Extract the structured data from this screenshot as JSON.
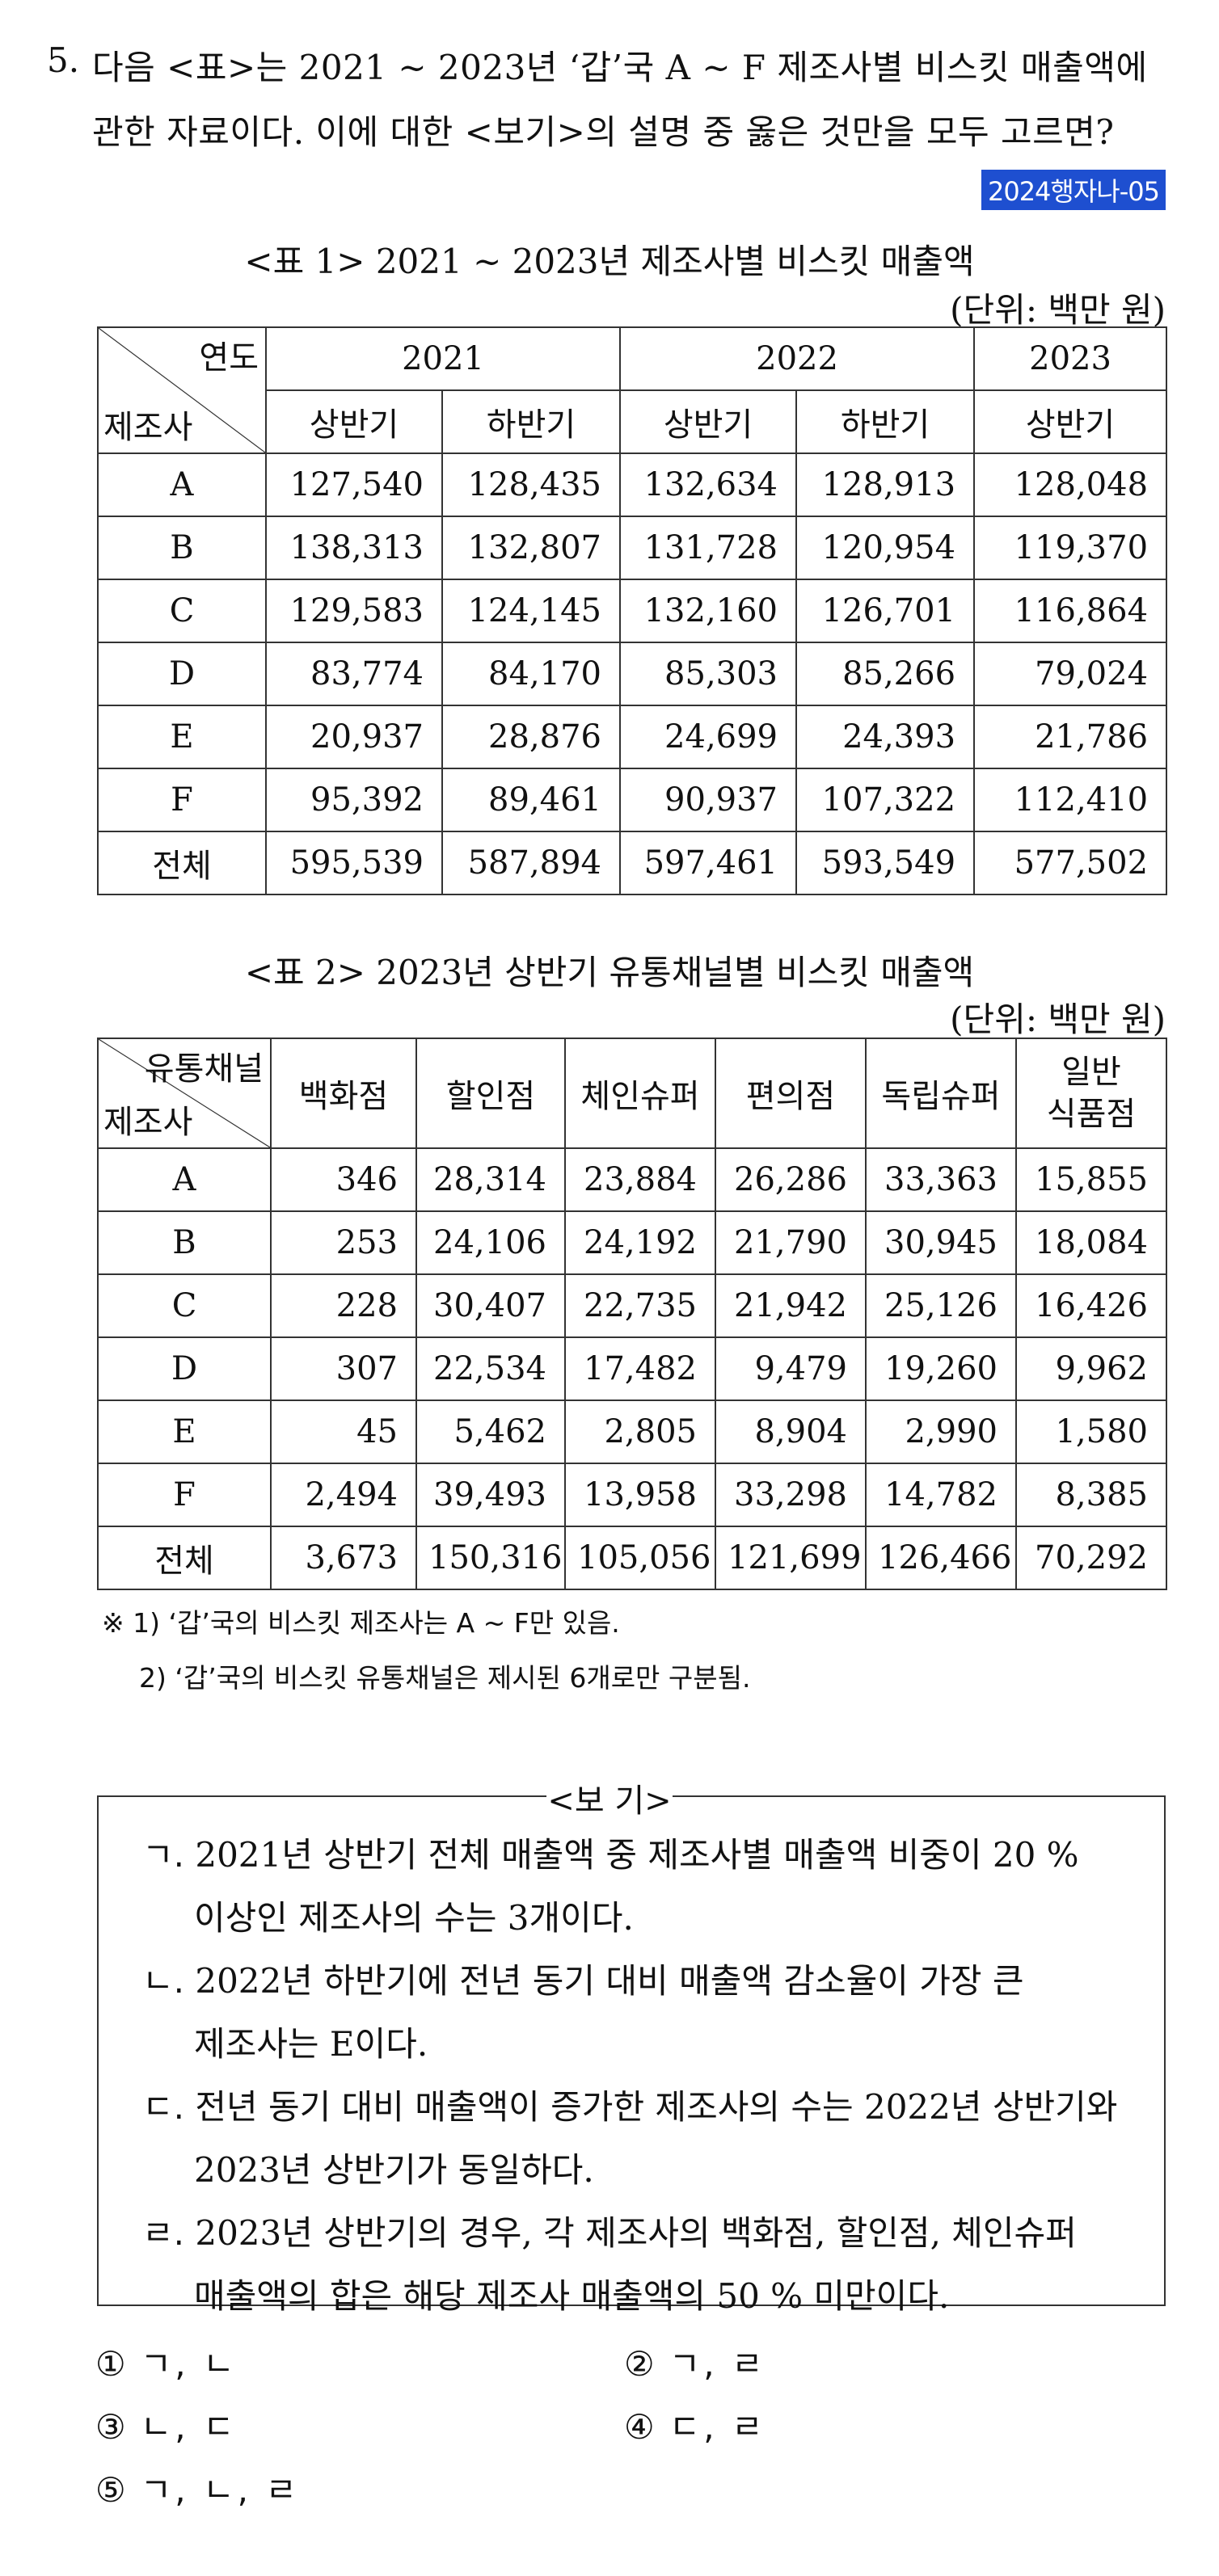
{
  "question": {
    "number": "5.",
    "line1": "다음 <표>는 2021 ~ 2023년 ‘갑’국 A ~ F 제조사별 비스킷 매출액에",
    "line2": "관한 자료이다. 이에 대한 <보기>의 설명 중 옳은 것만을 모두 고르면?",
    "tag": "2024행자나-05"
  },
  "table1": {
    "caption": "<표 1> 2021 ~ 2023년 제조사별 비스킷 매출액",
    "unit": "(단위: 백만 원)",
    "corner_top": "연도",
    "corner_bottom": "제조사",
    "years": [
      "2021",
      "2022",
      "2023"
    ],
    "halves": [
      "상반기",
      "하반기",
      "상반기",
      "하반기",
      "상반기"
    ],
    "rows": [
      {
        "label": "A",
        "values": [
          "127,540",
          "128,435",
          "132,634",
          "128,913",
          "128,048"
        ]
      },
      {
        "label": "B",
        "values": [
          "138,313",
          "132,807",
          "131,728",
          "120,954",
          "119,370"
        ]
      },
      {
        "label": "C",
        "values": [
          "129,583",
          "124,145",
          "132,160",
          "126,701",
          "116,864"
        ]
      },
      {
        "label": "D",
        "values": [
          "83,774",
          "84,170",
          "85,303",
          "85,266",
          "79,024"
        ]
      },
      {
        "label": "E",
        "values": [
          "20,937",
          "28,876",
          "24,699",
          "24,393",
          "21,786"
        ]
      },
      {
        "label": "F",
        "values": [
          "95,392",
          "89,461",
          "90,937",
          "107,322",
          "112,410"
        ]
      },
      {
        "label": "전체",
        "values": [
          "595,539",
          "587,894",
          "597,461",
          "593,549",
          "577,502"
        ]
      }
    ]
  },
  "table2": {
    "caption": "<표 2> 2023년 상반기 유통채널별 비스킷 매출액",
    "unit": "(단위: 백만 원)",
    "corner_top": "유통채널",
    "corner_bottom": "제조사",
    "channels": [
      "백화점",
      "할인점",
      "체인슈퍼",
      "편의점",
      "독립슈퍼"
    ],
    "last_channel_line1": "일반",
    "last_channel_line2": "식품점",
    "rows": [
      {
        "label": "A",
        "values": [
          "346",
          "28,314",
          "23,884",
          "26,286",
          "33,363",
          "15,855"
        ]
      },
      {
        "label": "B",
        "values": [
          "253",
          "24,106",
          "24,192",
          "21,790",
          "30,945",
          "18,084"
        ]
      },
      {
        "label": "C",
        "values": [
          "228",
          "30,407",
          "22,735",
          "21,942",
          "25,126",
          "16,426"
        ]
      },
      {
        "label": "D",
        "values": [
          "307",
          "22,534",
          "17,482",
          "9,479",
          "19,260",
          "9,962"
        ]
      },
      {
        "label": "E",
        "values": [
          "45",
          "5,462",
          "2,805",
          "8,904",
          "2,990",
          "1,580"
        ]
      },
      {
        "label": "F",
        "values": [
          "2,494",
          "39,493",
          "13,958",
          "33,298",
          "14,782",
          "8,385"
        ]
      },
      {
        "label": "전체",
        "values": [
          "3,673",
          "150,316",
          "105,056",
          "121,699",
          "126,466",
          "70,292"
        ]
      }
    ]
  },
  "notes": {
    "n1": "※ 1) ‘갑’국의 비스킷 제조사는 A ~ F만 있음.",
    "n2": "2) ‘갑’국의 비스킷 유통채널은 제시된 6개로만 구분됨."
  },
  "bogi": {
    "title": "<보 기>",
    "items": [
      {
        "key": "ㄱ.",
        "line1": "2021년 상반기 전체 매출액 중 제조사별 매출액 비중이 20 %",
        "line2": "이상인 제조사의 수는 3개이다."
      },
      {
        "key": "ㄴ.",
        "line1": "2022년 하반기에 전년 동기 대비 매출액 감소율이 가장 큰",
        "line2": "제조사는 E이다."
      },
      {
        "key": "ㄷ.",
        "line1": "전년 동기 대비 매출액이 증가한 제조사의 수는 2022년 상반기와",
        "line2": "2023년 상반기가 동일하다."
      },
      {
        "key": "ㄹ.",
        "line1": "2023년 상반기의 경우, 각 제조사의 백화점, 할인점, 체인슈퍼",
        "line2": "매출액의 합은 해당 제조사 매출액의 50 % 미만이다."
      }
    ]
  },
  "options": [
    {
      "num": "①",
      "text": "ㄱ, ㄴ"
    },
    {
      "num": "②",
      "text": "ㄱ, ㄹ"
    },
    {
      "num": "③",
      "text": "ㄴ, ㄷ"
    },
    {
      "num": "④",
      "text": "ㄷ, ㄹ"
    },
    {
      "num": "⑤",
      "text": "ㄱ, ㄴ, ㄹ"
    }
  ]
}
